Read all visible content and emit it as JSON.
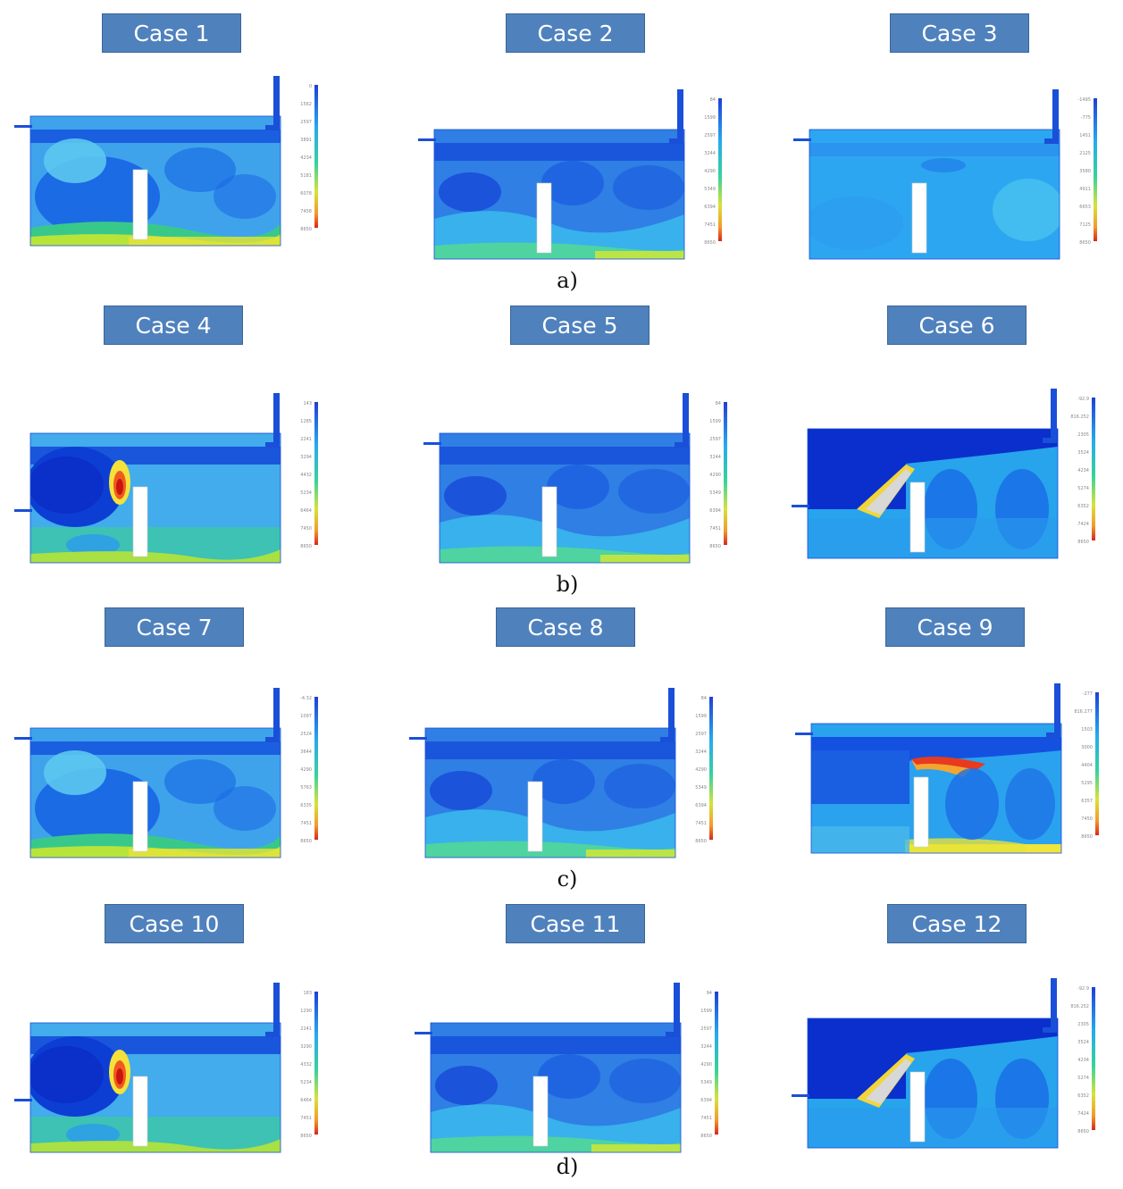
{
  "rows": [
    {
      "label": "a)",
      "cases": [
        {
          "title": "Case 1",
          "flow": "a",
          "scale": [
            "0",
            "1562",
            "2597",
            "3891",
            "4234",
            "5181",
            "6078",
            "7458",
            "8650"
          ]
        },
        {
          "title": "Case 2",
          "flow": "b",
          "scale": [
            "84",
            "1599",
            "2597",
            "3244",
            "4290",
            "5349",
            "6394",
            "7451",
            "8650"
          ]
        },
        {
          "title": "Case 3",
          "flow": "c",
          "scale": [
            "-1495",
            "-775",
            "1451",
            "2125",
            "3580",
            "4911",
            "6653",
            "7125",
            "8650"
          ]
        }
      ]
    },
    {
      "label": "b)",
      "cases": [
        {
          "title": "Case 4",
          "flow": "d",
          "scale": [
            "143",
            "1285",
            "2241",
            "3294",
            "4432",
            "5234",
            "6464",
            "7450",
            "8650"
          ]
        },
        {
          "title": "Case 5",
          "flow": "b",
          "scale": [
            "84",
            "1599",
            "2597",
            "3244",
            "4290",
            "5349",
            "6394",
            "7451",
            "8650"
          ]
        },
        {
          "title": "Case 6",
          "flow": "e",
          "scale": [
            "-92.9",
            "816.252",
            "2305",
            "3524",
            "4234",
            "5274",
            "6352",
            "7424",
            "8650"
          ]
        }
      ]
    },
    {
      "label": "c)",
      "cases": [
        {
          "title": "Case 7",
          "flow": "a",
          "scale": [
            "-4.32",
            "1097",
            "2524",
            "3644",
            "4290",
            "5763",
            "6335",
            "7451",
            "8650"
          ]
        },
        {
          "title": "Case 8",
          "flow": "b",
          "scale": [
            "84",
            "1599",
            "2597",
            "3244",
            "4290",
            "5349",
            "6394",
            "7451",
            "8650"
          ]
        },
        {
          "title": "Case 9",
          "flow": "f",
          "scale": [
            "-277",
            "816.277",
            "1503",
            "3000",
            "4404",
            "5295",
            "6357",
            "7450",
            "8650"
          ]
        }
      ]
    },
    {
      "label": "d)",
      "cases": [
        {
          "title": "Case 10",
          "flow": "d",
          "scale": [
            "183",
            "1290",
            "2241",
            "3290",
            "4332",
            "5234",
            "6464",
            "7451",
            "8650"
          ]
        },
        {
          "title": "Case 11",
          "flow": "b",
          "scale": [
            "94",
            "1599",
            "2597",
            "3244",
            "4290",
            "5349",
            "6394",
            "7451",
            "8650"
          ]
        },
        {
          "title": "Case 12",
          "flow": "e",
          "scale": [
            "-92.9",
            "816.252",
            "2305",
            "3524",
            "4234",
            "5274",
            "6352",
            "7424",
            "8650"
          ]
        }
      ]
    }
  ]
}
